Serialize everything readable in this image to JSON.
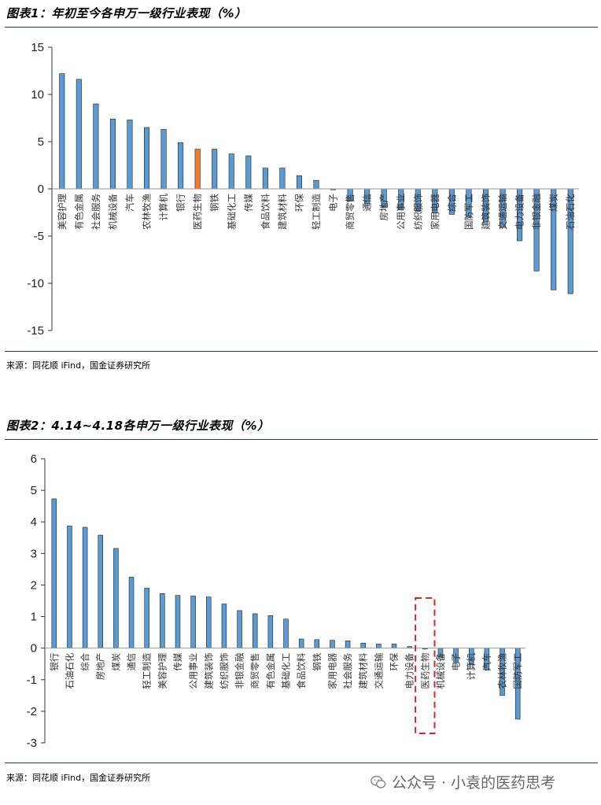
{
  "figure1": {
    "title": "图表1：年初至今各申万一级行业表现（%）",
    "source": "来源：同花顺 iFind，国金证券研究所"
  },
  "figure2": {
    "title": "图表2：4.14~4.18各申万一级行业表现（%）",
    "source": "来源：同花顺 iFind，国金证券研究所"
  },
  "watermark": {
    "text": "公众号 · 小袁的医药思考",
    "icon": "wechat-icon"
  },
  "colors": {
    "bar": "#5b9bd5",
    "highlight": "#ed7d31",
    "highlight_box": "#d62728"
  },
  "chart_data": [
    {
      "type": "bar",
      "title": "图表1：年初至今各申万一级行业表现（%）",
      "ylim": [
        -15,
        15
      ],
      "yticks": [
        -15,
        -10,
        -5,
        0,
        5,
        10,
        15
      ],
      "grid": false,
      "highlight": "医药生物",
      "categories": [
        "美容护理",
        "有色金属",
        "社会服务",
        "机械设备",
        "汽车",
        "农林牧渔",
        "计算机",
        "银行",
        "医药生物",
        "钢铁",
        "基础化工",
        "传媒",
        "食品饮料",
        "建筑材料",
        "环保",
        "轻工制造",
        "电子",
        "商贸零售",
        "通信",
        "房地产",
        "公用事业",
        "纺织服饰",
        "家用电器",
        "综合",
        "国防军工",
        "建筑装饰",
        "交通运输",
        "电力设备",
        "非银金融",
        "煤炭",
        "石油石化"
      ],
      "values": [
        12.2,
        11.6,
        9.0,
        7.4,
        7.3,
        6.5,
        6.3,
        4.9,
        4.2,
        4.2,
        3.7,
        3.5,
        2.2,
        2.2,
        1.4,
        0.9,
        -0.1,
        -1.3,
        -1.6,
        -1.9,
        -2.2,
        -2.4,
        -2.5,
        -2.7,
        -3.0,
        -3.5,
        -4.1,
        -5.5,
        -8.7,
        -10.7,
        -11.1
      ]
    },
    {
      "type": "bar",
      "title": "图表2：4.14~4.18各申万一级行业表现（%）",
      "ylim": [
        -3,
        6
      ],
      "yticks": [
        -3,
        -2,
        -1,
        0,
        1,
        2,
        3,
        4,
        5,
        6
      ],
      "grid": false,
      "highlight": "医药生物",
      "categories": [
        "银行",
        "石油石化",
        "综合",
        "房地产",
        "煤炭",
        "通信",
        "轻工制造",
        "美容护理",
        "传媒",
        "公用事业",
        "建筑装饰",
        "纺织服饰",
        "非银金融",
        "商贸零售",
        "有色金属",
        "基础化工",
        "食品饮料",
        "钢铁",
        "家用电器",
        "社会服务",
        "建筑材料",
        "交通运输",
        "环保",
        "电力设备",
        "医药生物",
        "机械设备",
        "电子",
        "计算机",
        "汽车",
        "农林牧渔",
        "国防军工"
      ],
      "values": [
        4.73,
        3.87,
        3.83,
        3.58,
        3.16,
        2.25,
        1.9,
        1.73,
        1.67,
        1.65,
        1.62,
        1.4,
        1.19,
        1.09,
        1.03,
        0.92,
        0.29,
        0.27,
        0.25,
        0.23,
        0.16,
        0.13,
        0.13,
        0.05,
        -0.03,
        -0.28,
        -0.45,
        -0.52,
        -0.7,
        -1.5,
        -2.25
      ]
    }
  ]
}
